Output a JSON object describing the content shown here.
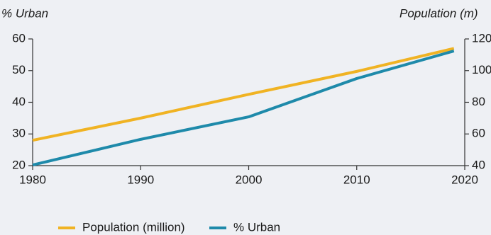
{
  "chart_data": {
    "type": "line",
    "y_label": "% Urban",
    "y2_label": "Population (m)",
    "x": [
      1980,
      1990,
      2000,
      2010,
      2019
    ],
    "xlim": [
      1980,
      2020
    ],
    "xticks": [
      1980,
      1990,
      2000,
      2010,
      2020
    ],
    "ylim": [
      20,
      60
    ],
    "yticks": [
      20,
      30,
      40,
      50,
      60
    ],
    "y2lim": [
      40,
      120
    ],
    "y2ticks": [
      40,
      60,
      80,
      100,
      120
    ],
    "series": [
      {
        "name": "Population (million)",
        "color": "#f0b323",
        "axis": "y2",
        "values": [
          56,
          70,
          85,
          99.5,
          114
        ]
      },
      {
        "name": "% Urban",
        "color": "#1e8aaa",
        "values": [
          20.2,
          28.3,
          35.4,
          47.5,
          56.2
        ]
      }
    ]
  }
}
